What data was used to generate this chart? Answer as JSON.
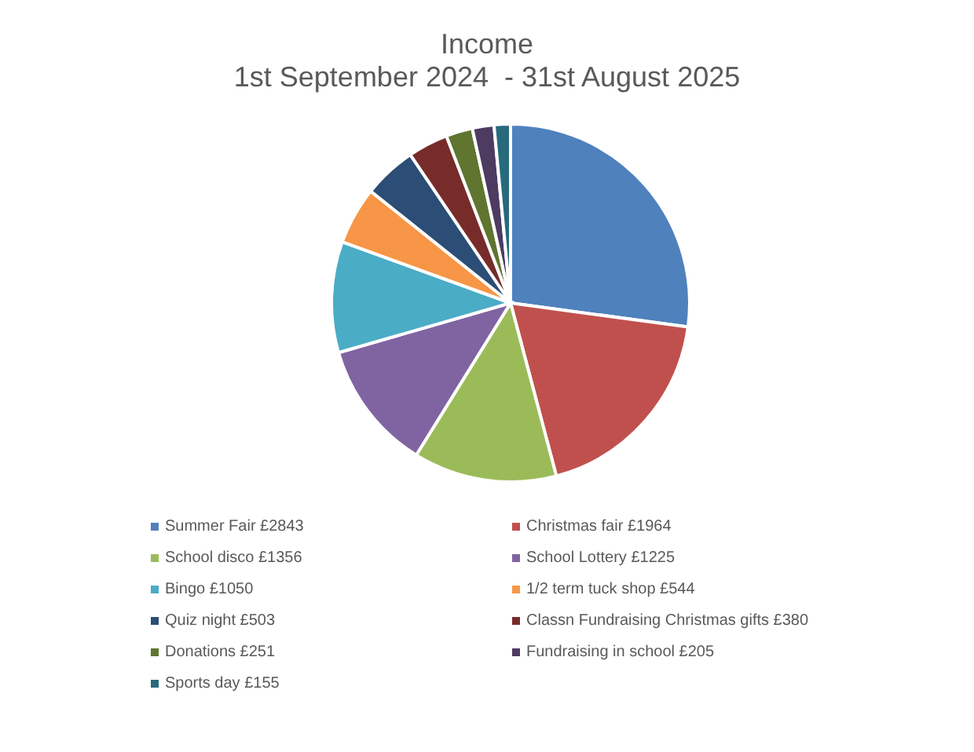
{
  "chart_data": {
    "type": "pie",
    "title": "Income",
    "subtitle": "1st September 2024  - 31st August 2025",
    "categories": [
      "Summer Fair £2843",
      "Christmas fair £1964",
      "School disco £1356",
      "School Lottery £1225",
      "Bingo £1050",
      "1/2 term tuck shop £544",
      "Quiz night £503",
      "Classn Fundraising Christmas gifts £380",
      "Donations £251",
      "Fundraising in school £205",
      "Sports day £155"
    ],
    "values": [
      2843,
      1964,
      1356,
      1225,
      1050,
      544,
      503,
      380,
      251,
      205,
      155
    ],
    "colors": [
      "#4f81bd",
      "#c0504d",
      "#9bbb59",
      "#8064a2",
      "#4bacc6",
      "#f79646",
      "#2c4d75",
      "#772c2a",
      "#5f7530",
      "#4d3b62",
      "#276a7c"
    ],
    "legend": "bottom"
  }
}
